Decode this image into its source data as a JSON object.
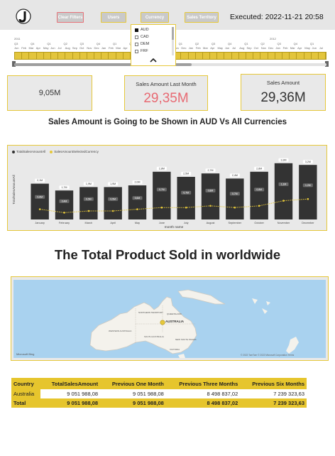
{
  "header": {
    "buttons": {
      "clear_filters": "Clear Filters",
      "users": "Users",
      "currency": "Currency",
      "sales_territory": "Sales Territory"
    },
    "executed": "Executed: 2022-11-21 20:58"
  },
  "timeline": {
    "years": [
      "2011",
      "2012"
    ],
    "quarters": [
      "Q3",
      "Q4",
      "Q1",
      "Q2",
      "Q3",
      "Q4",
      "Q1",
      "Q2",
      "Q3",
      "Q4",
      "Q1",
      "Q2",
      "Q3",
      "Q4",
      "Q1",
      "Q2",
      "Q3",
      "Q4",
      "Q1"
    ],
    "months": [
      "Jun",
      "Feb",
      "Mar",
      "Apr",
      "May",
      "Jun",
      "Jul",
      "Aug",
      "Sep",
      "Oct",
      "Nov",
      "Dec",
      "Jan",
      "Feb",
      "Mar",
      "Apr",
      "May",
      "Jun",
      "Jul",
      "Aug",
      "Sep",
      "Oct",
      "Nov",
      "Dec",
      "Jan",
      "Feb",
      "Mar",
      "Apr",
      "May",
      "Jun",
      "Jul",
      "Aug",
      "Sep",
      "Oct",
      "Nov",
      "Dec",
      "Jan",
      "Feb",
      "Mar",
      "Apr",
      "May",
      "Jun",
      "Jul"
    ]
  },
  "currency_dropdown": {
    "options": [
      {
        "label": "AUD",
        "checked": true
      },
      {
        "label": "CAD",
        "checked": false
      },
      {
        "label": "DEM",
        "checked": false
      },
      {
        "label": "FRF",
        "checked": false
      }
    ]
  },
  "cards": {
    "left": {
      "value": "9,05M"
    },
    "middle": {
      "title": "Sales Amount Last Month",
      "value": "29,35M",
      "value_color": "#e86a73"
    },
    "right": {
      "title": "Sales Amount",
      "value": "29,36M"
    }
  },
  "headings": {
    "chart": "Sales Amount is Going to be Shown in AUD Vs All Currencies",
    "map": "The Total Product Sold in worldwide"
  },
  "chart_data": {
    "type": "bar",
    "categories": [
      "January",
      "February",
      "March",
      "April",
      "May",
      "June",
      "July",
      "August",
      "September",
      "October",
      "November",
      "December"
    ],
    "series": [
      {
        "name": "TotalSalesAmountAll",
        "values": [
          2.1,
          1.7,
          1.9,
          1.9,
          2.0,
          2.8,
          2.5,
          2.7,
          2.4,
          2.8,
          3.3,
          3.2
        ],
        "labels": [
          "2,1M",
          "1,7M",
          "1,9M",
          "1,9M",
          "2,0M",
          "2,8M",
          "2,5M",
          "2,7M",
          "2,4M",
          "2,8M",
          "3,3M",
          "3,2M"
        ]
      },
      {
        "name": "SalesAmountSelectedCurrency",
        "values": [
          0.6,
          0.4,
          0.5,
          0.5,
          0.6,
          0.7,
          0.7,
          0.8,
          0.7,
          0.8,
          1.1,
          1.2
        ],
        "labels": [
          "0,6M",
          "0,4M",
          "0,5M",
          "0,5M",
          "0,6M",
          "0,7M",
          "0,7M",
          "0,8M",
          "0,7M",
          "0,8M",
          "1,1M",
          "1,2M"
        ]
      }
    ],
    "inner_labels": [
      "0,6M",
      "0,4M",
      "0,5M",
      "0,5M",
      "0,6M",
      "0,7M",
      "0,7M",
      "0,8M",
      "0,7M",
      "0,8M",
      "1,1M",
      "1,2M"
    ],
    "xlabel": "month name",
    "ylabel": "TotalSalesAmountAll",
    "ylim": [
      0,
      3.5
    ],
    "legend_position": "top-left",
    "colors": {
      "bar": "#333333",
      "line": "#e6c83a"
    }
  },
  "map": {
    "city_label": "AUSTRALIA",
    "state_labels": [
      "NORTHERN TERRITORY",
      "QUEENSLAND",
      "WESTERN AUSTRALIA",
      "SOUTH AUSTRALIA",
      "NEW SOUTH WALES",
      "VICTORIA"
    ],
    "credit": "Microsoft Bing",
    "copyright": "© 2022 TomTom © 2022 Microsoft Corporation  Terms"
  },
  "table": {
    "headers": [
      "Country",
      "TotalSalesAmount",
      "Previous One Month",
      "Previous Three Months",
      "Previous Six Months"
    ],
    "rows": [
      [
        "Australia",
        "9 051 988,08",
        "9 051 988,08",
        "8 498 837,02",
        "7 239 323,63"
      ]
    ],
    "total": [
      "Total",
      "9 051 988,08",
      "9 051 988,08",
      "8 498 837,02",
      "7 239 323,63"
    ]
  }
}
